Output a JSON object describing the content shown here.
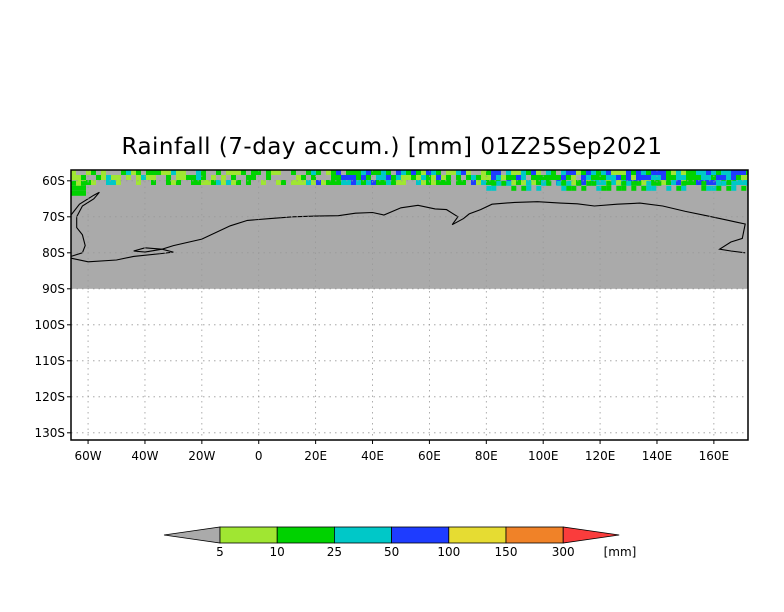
{
  "title": "Rainfall (7-day accum.) [mm] 01Z25Sep2021",
  "map": {
    "lat_labels": [
      "60S",
      "70S",
      "80S",
      "90S",
      "100S",
      "110S",
      "120S",
      "130S"
    ],
    "lat_values": [
      -60,
      -70,
      -80,
      -90,
      -100,
      -110,
      -120,
      -130
    ],
    "lon_labels": [
      "60W",
      "40W",
      "20W",
      "0",
      "20E",
      "40E",
      "60E",
      "80E",
      "100E",
      "120E",
      "140E",
      "160E"
    ],
    "lon_values": [
      -60,
      -40,
      -20,
      0,
      20,
      40,
      60,
      80,
      100,
      120,
      140,
      160
    ],
    "lon_range": [
      -66,
      172
    ],
    "lat_range": [
      -132,
      -57
    ],
    "land_color": "#aaaaaa",
    "grid": true
  },
  "legend": {
    "labels": [
      "5",
      "10",
      "25",
      "50",
      "100",
      "150",
      "300"
    ],
    "unit": "[mm]",
    "colors": [
      "#aaaaaa",
      "#a0e632",
      "#00d200",
      "#00c8c8",
      "#1e3cff",
      "#e6dc32",
      "#f08228",
      "#fa3c3c"
    ]
  }
}
